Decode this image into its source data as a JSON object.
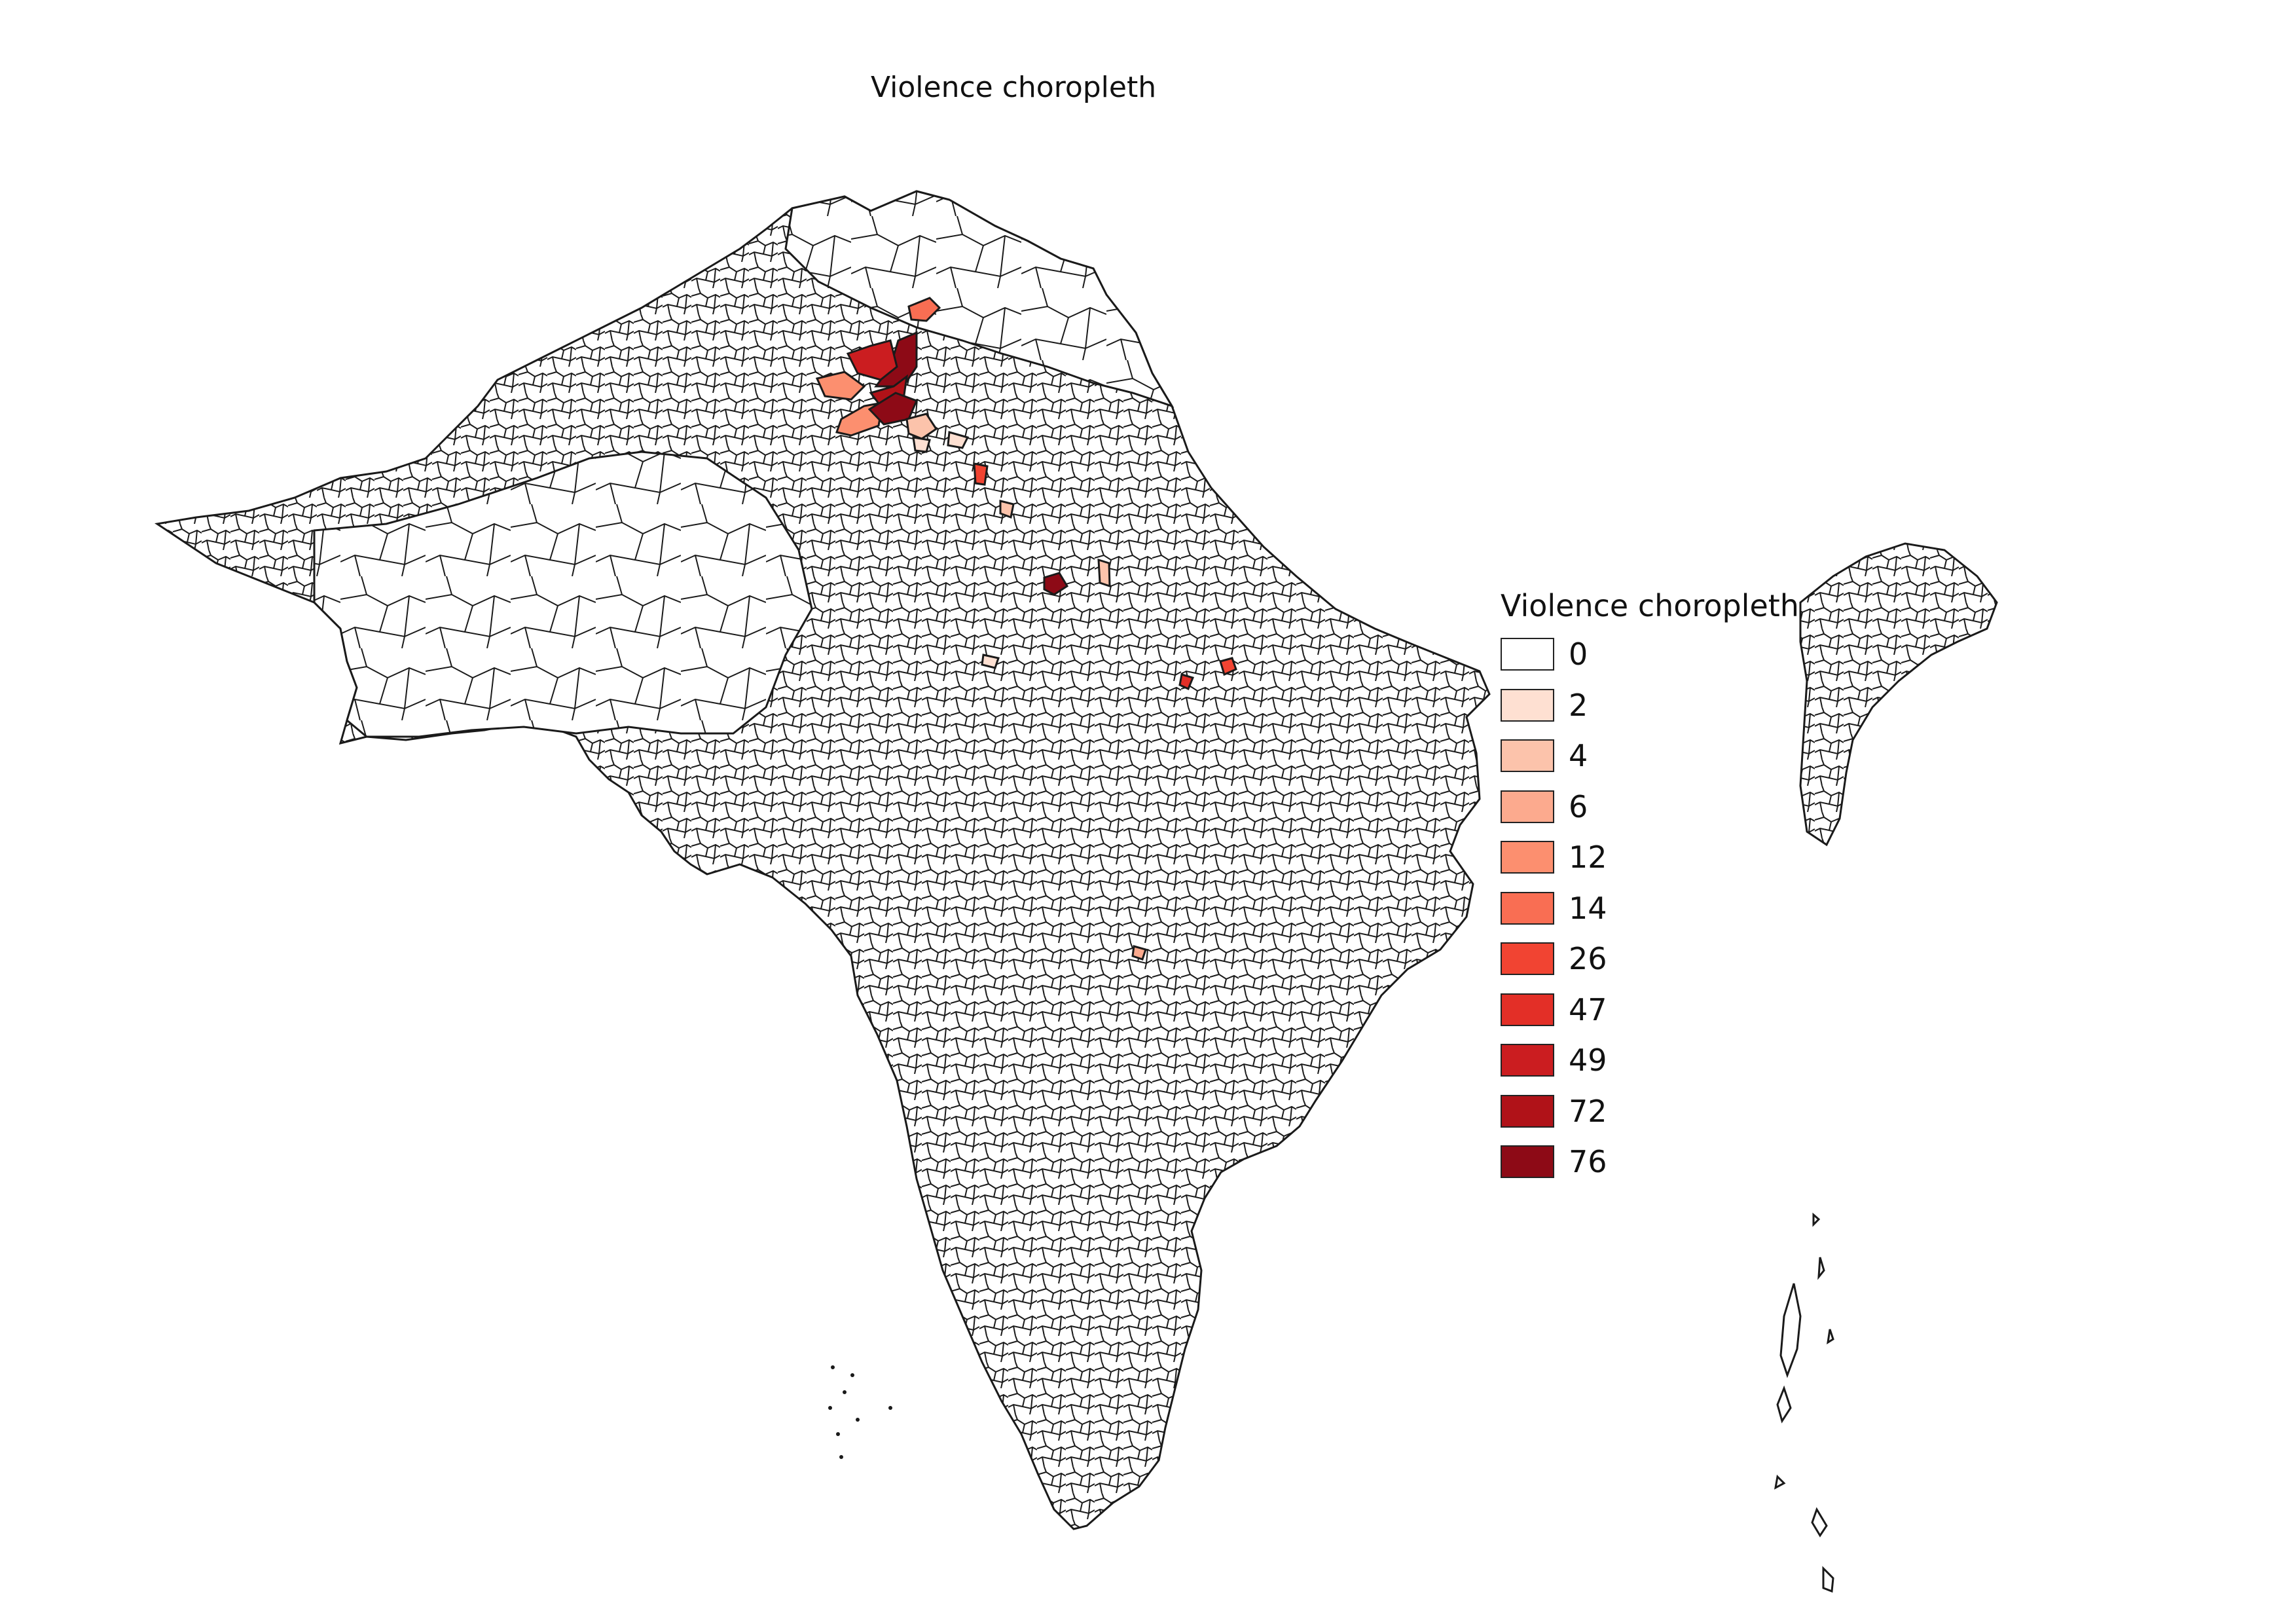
{
  "title": "Violence choropleth",
  "legend": {
    "title": "Violence choropleth",
    "classes": [
      {
        "label": "0",
        "value": 0,
        "color": "#ffffff"
      },
      {
        "label": "2",
        "value": 2,
        "color": "#fee0d2"
      },
      {
        "label": "4",
        "value": 4,
        "color": "#fcc3ab"
      },
      {
        "label": "6",
        "value": 6,
        "color": "#fcaa8e"
      },
      {
        "label": "12",
        "value": 12,
        "color": "#fc8f6f"
      },
      {
        "label": "14",
        "value": 14,
        "color": "#f96e53"
      },
      {
        "label": "26",
        "value": 26,
        "color": "#f14432"
      },
      {
        "label": "47",
        "value": 47,
        "color": "#e32f27"
      },
      {
        "label": "49",
        "value": 49,
        "color": "#cb1d20"
      },
      {
        "label": "72",
        "value": 72,
        "color": "#b01218"
      },
      {
        "label": "76",
        "value": 76,
        "color": "#8d0a16"
      }
    ]
  },
  "colors": {
    "district_outline": "#1a1a1a",
    "background": "#ffffff"
  }
}
